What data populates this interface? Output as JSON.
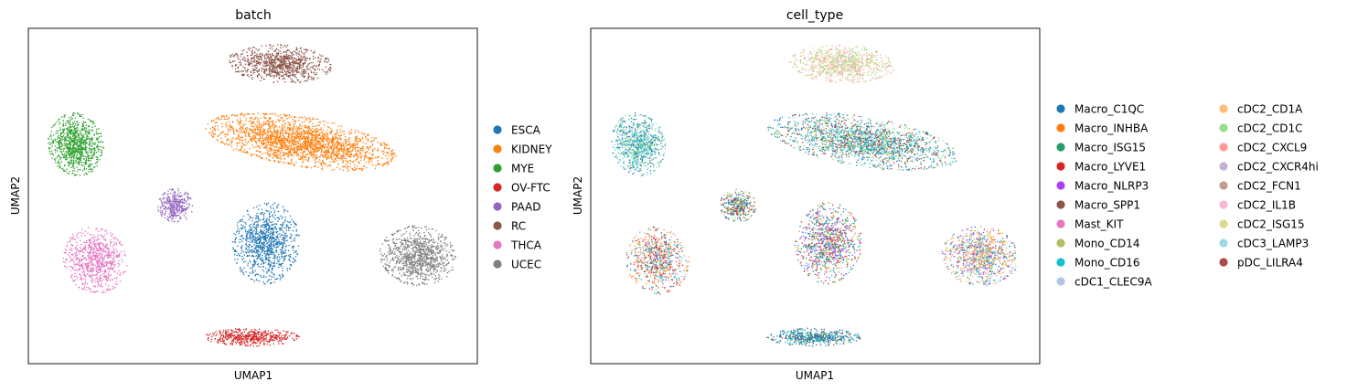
{
  "chart_data": [
    {
      "type": "scatter",
      "title": "batch",
      "xlabel": "UMAP1",
      "ylabel": "UMAP2",
      "grid": false,
      "ticks": false,
      "legend_placement": "right",
      "legend_entries": [
        {
          "name": "ESCA",
          "color": "#1f77b4"
        },
        {
          "name": "KIDNEY",
          "color": "#ff7f0e"
        },
        {
          "name": "MYE",
          "color": "#2ca02c"
        },
        {
          "name": "OV-FTC",
          "color": "#d62728"
        },
        {
          "name": "PAAD",
          "color": "#9467bd"
        },
        {
          "name": "RC",
          "color": "#8c564b"
        },
        {
          "name": "THCA",
          "color": "#e377c2"
        },
        {
          "name": "UCEC",
          "color": "#7f7f7f"
        }
      ]
    },
    {
      "type": "scatter",
      "title": "cell_type",
      "xlabel": "UMAP1",
      "ylabel": "UMAP2",
      "grid": false,
      "ticks": false,
      "legend_placement": "right",
      "legend_entries": [
        {
          "name": "Macro_C1QC",
          "color": "#1f77b4"
        },
        {
          "name": "Macro_INHBA",
          "color": "#ff7f0e"
        },
        {
          "name": "Macro_ISG15",
          "color": "#279e68"
        },
        {
          "name": "Macro_LYVE1",
          "color": "#d62728"
        },
        {
          "name": "Macro_NLRP3",
          "color": "#aa40fc"
        },
        {
          "name": "Macro_SPP1",
          "color": "#8c564b"
        },
        {
          "name": "Mast_KIT",
          "color": "#e377c2"
        },
        {
          "name": "Mono_CD14",
          "color": "#b5bd61"
        },
        {
          "name": "Mono_CD16",
          "color": "#17becf"
        },
        {
          "name": "cDC1_CLEC9A",
          "color": "#aec7e8"
        },
        {
          "name": "cDC2_CD1A",
          "color": "#ffbb78"
        },
        {
          "name": "cDC2_CD1C",
          "color": "#98df8a"
        },
        {
          "name": "cDC2_CXCL9",
          "color": "#ff9896"
        },
        {
          "name": "cDC2_CXCR4hi",
          "color": "#c5b0d5"
        },
        {
          "name": "cDC2_FCN1",
          "color": "#c49c94"
        },
        {
          "name": "cDC2_IL1B",
          "color": "#f7b6d2"
        },
        {
          "name": "cDC2_ISG15",
          "color": "#dbdb8d"
        },
        {
          "name": "cDC3_LAMP3",
          "color": "#9edae5"
        },
        {
          "name": "pDC_LILRA4",
          "color": "#ad494a"
        }
      ]
    }
  ]
}
